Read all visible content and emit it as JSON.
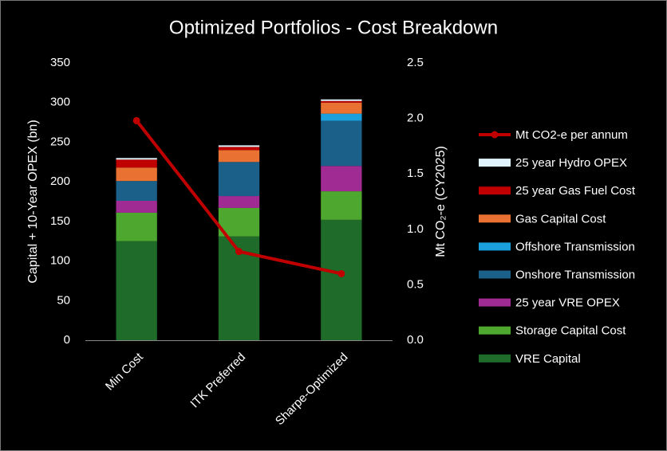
{
  "chart_data": {
    "type": "bar",
    "title": "Optimized Portfolios - Cost Breakdown",
    "y_label": "Capital + 10-Year OPEX (bn)",
    "y2_label": "Mt CO₂-e (CY2025)",
    "categories": [
      "Min Cost",
      "ITK Preferred",
      "Sharpe-Optimized"
    ],
    "ylim": [
      0,
      350
    ],
    "yticks": [
      0,
      50,
      100,
      150,
      200,
      250,
      300,
      350
    ],
    "y2lim": [
      0,
      2.5
    ],
    "y2ticks": [
      {
        "value": 0,
        "label": "0.0"
      },
      0.5,
      {
        "value": 1,
        "label": "1.0"
      },
      1.5,
      {
        "value": 2,
        "label": "2.0"
      },
      2.5
    ],
    "grid": false,
    "legend": "right",
    "series": [
      {
        "name": "VRE Capital",
        "color": "#1e6b2a",
        "values": [
          125,
          131,
          152
        ]
      },
      {
        "name": "Storage Capital Cost",
        "color": "#4ea72e",
        "values": [
          36,
          36,
          36
        ]
      },
      {
        "name": "25 year VRE OPEX",
        "color": "#a02b93",
        "values": [
          15,
          15,
          32
        ]
      },
      {
        "name": "Onshore Transmission",
        "color": "#1a6089",
        "values": [
          25,
          43,
          57
        ]
      },
      {
        "name": "Offshore Transmission",
        "color": "#1aa0dc",
        "values": [
          0,
          0,
          9
        ]
      },
      {
        "name": "Gas Capital Cost",
        "color": "#e97132",
        "values": [
          17,
          15,
          14
        ]
      },
      {
        "name": "25 year Gas Fuel Cost",
        "color": "#c00000",
        "values": [
          10,
          4,
          2
        ]
      },
      {
        "name": "25 year Hydro OPEX",
        "color": "#dff3fc",
        "values": [
          2,
          2,
          2
        ]
      },
      {
        "name": "Mt CO2-e per annum",
        "color": "#c00000",
        "type": "line",
        "axis": "y2",
        "values": [
          1.98,
          0.8,
          0.6
        ]
      }
    ]
  }
}
